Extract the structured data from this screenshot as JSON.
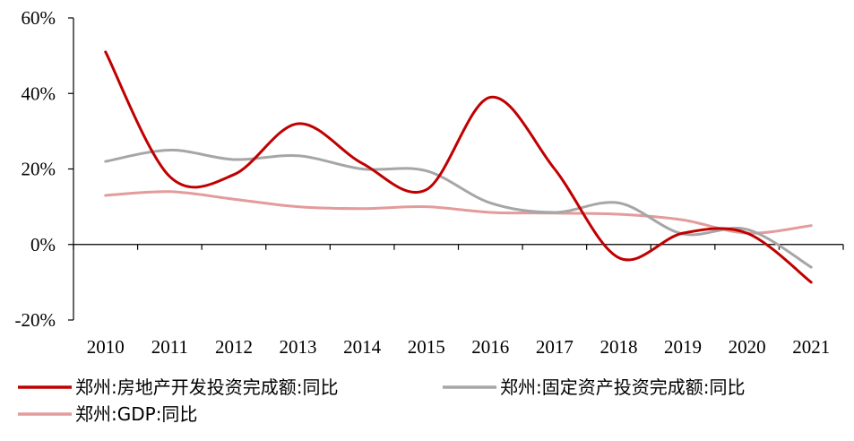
{
  "chart_data": {
    "type": "line",
    "title": "",
    "xlabel": "",
    "ylabel": "",
    "x": [
      "2010",
      "2011",
      "2012",
      "2013",
      "2014",
      "2015",
      "2016",
      "2017",
      "2018",
      "2019",
      "2020",
      "2021"
    ],
    "ylim": [
      -20,
      60
    ],
    "yticks": [
      "60%",
      "40%",
      "20%",
      "0%",
      "-20%"
    ],
    "ytick_values": [
      60,
      40,
      20,
      0,
      -20
    ],
    "grid": false,
    "legend_position": "bottom",
    "series": [
      {
        "name": "郑州:房地产开发投资完成额:同比",
        "color": "#C00000",
        "values": [
          51,
          18,
          18.5,
          32,
          21.5,
          14.5,
          39,
          20,
          -3.5,
          3,
          3,
          -10
        ]
      },
      {
        "name": "郑州:固定资产投资完成额:同比",
        "color": "#A6A6A6",
        "values": [
          22,
          25,
          22.5,
          23.5,
          20,
          19.5,
          11,
          8.5,
          11,
          2.8,
          4,
          -6
        ]
      },
      {
        "name": "郑州:GDP:同比",
        "color": "#E39B9B",
        "values": [
          13,
          14,
          12,
          10,
          9.5,
          10,
          8.5,
          8.3,
          8,
          6.5,
          3,
          5
        ]
      }
    ]
  }
}
